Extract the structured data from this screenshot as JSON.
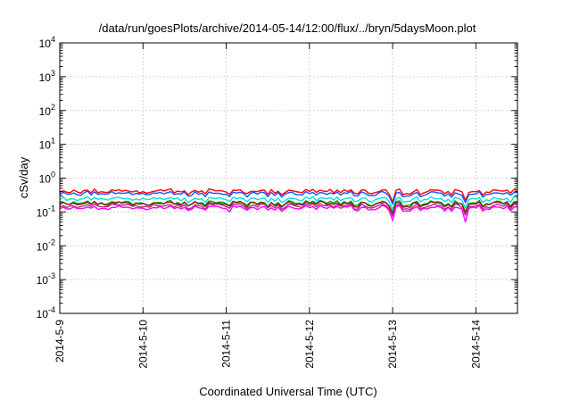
{
  "chart_data": {
    "type": "line",
    "title": "/data/run/goesPlots/archive/2014-05-14/12:00/flux/../bryn/5daysMoon.plot",
    "xlabel": "Coordinated Universal Time (UTC)",
    "ylabel": "cSv/day",
    "y_scale": "log",
    "ylim": [
      0.0001,
      10000
    ],
    "y_ticks": [
      {
        "value": 0.0001,
        "base": "10",
        "exp": "-4"
      },
      {
        "value": 0.001,
        "base": "10",
        "exp": "-3"
      },
      {
        "value": 0.01,
        "base": "10",
        "exp": "-2"
      },
      {
        "value": 0.1,
        "base": "10",
        "exp": "-1"
      },
      {
        "value": 1,
        "base": "10",
        "exp": "0"
      },
      {
        "value": 10,
        "base": "10",
        "exp": "1"
      },
      {
        "value": 100,
        "base": "10",
        "exp": "2"
      },
      {
        "value": 1000,
        "base": "10",
        "exp": "3"
      },
      {
        "value": 10000,
        "base": "10",
        "exp": "4"
      }
    ],
    "x_start": "2014-05-09 00:00",
    "x_end": "2014-05-14 12:00",
    "x_ticks": [
      "2014-5-9",
      "2014-5-10",
      "2014-5-11",
      "2014-5-12",
      "2014-5-13",
      "2014-5-14"
    ],
    "grid": true,
    "series": [
      {
        "color": "#ff0000",
        "base": 0.42,
        "dips": [
          {
            "at": "2014-05-13 00:00",
            "value": 0.2
          },
          {
            "at": "2014-05-13 21:00",
            "value": 0.22
          }
        ]
      },
      {
        "color": "#1a4fff",
        "base": 0.36,
        "dips": [
          {
            "at": "2014-05-13 00:00",
            "value": 0.17
          },
          {
            "at": "2014-05-13 21:00",
            "value": 0.19
          }
        ]
      },
      {
        "color": "#00e0e0",
        "base": 0.25,
        "dips": [
          {
            "at": "2014-05-13 00:00",
            "value": 0.12
          },
          {
            "at": "2014-05-13 21:00",
            "value": 0.13
          }
        ]
      },
      {
        "color": "#00a000",
        "base": 0.19,
        "dips": [
          {
            "at": "2014-05-13 00:00",
            "value": 0.095
          },
          {
            "at": "2014-05-13 21:00",
            "value": 0.1
          }
        ]
      },
      {
        "color": "#8b1a1a",
        "base": 0.18,
        "dips": [
          {
            "at": "2014-05-13 00:00",
            "value": 0.09
          },
          {
            "at": "2014-05-13 21:00",
            "value": 0.095
          }
        ]
      },
      {
        "color": "#b03080",
        "base": 0.155,
        "dips": [
          {
            "at": "2014-05-13 00:00",
            "value": 0.075
          },
          {
            "at": "2014-05-13 21:00",
            "value": 0.08
          }
        ]
      },
      {
        "color": "#ff00ff",
        "base": 0.135,
        "dips": [
          {
            "at": "2014-05-13 00:00",
            "value": 0.055
          },
          {
            "at": "2014-05-13 21:00",
            "value": 0.05
          }
        ]
      }
    ]
  }
}
